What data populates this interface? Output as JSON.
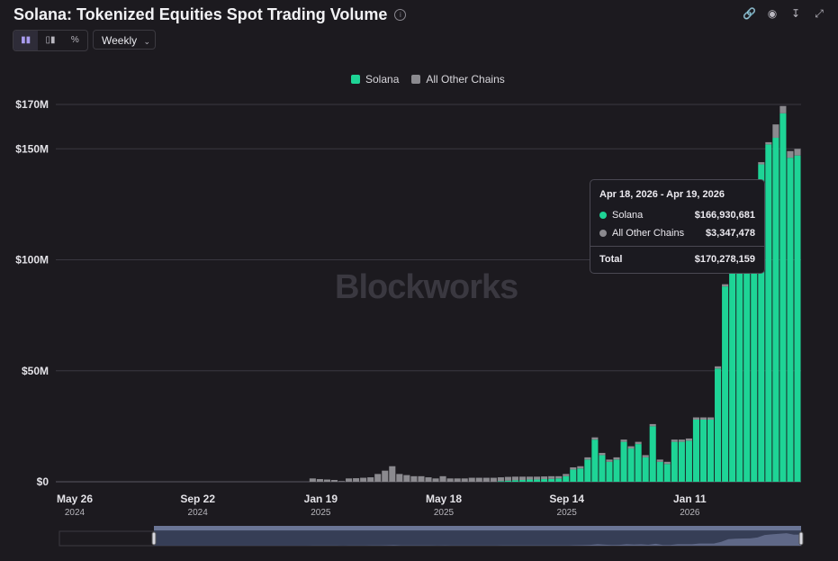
{
  "title": "Solana: Tokenized Equities Spot Trading Volume",
  "toolbar": {
    "chart_modes": [
      "bar-chart-icon",
      "stacked-bar-icon",
      "percent-icon"
    ],
    "interval": "Weekly",
    "actions": [
      "link-icon",
      "camera-icon",
      "download-icon",
      "fullscreen-icon"
    ]
  },
  "watermark": "Blockworks",
  "tooltip": {
    "title": "Apr 18, 2026 - Apr 19, 2026",
    "rows": [
      {
        "label": "Solana",
        "value": "$166,930,681"
      },
      {
        "label": "All Other Chains",
        "value": "$3,347,478"
      }
    ],
    "total_label": "Total",
    "total_value": "$170,278,159"
  },
  "chart_data": {
    "type": "bar",
    "stacked": true,
    "legend_position": "top-center",
    "colors": {
      "Solana": "#1ed496",
      "All Other Chains": "#8b8a8f",
      "background": "#1c1a1f",
      "grid": "#3a3840"
    },
    "y_ticks": [
      "$0",
      "$50M",
      "$100M",
      "$150M",
      "$170M"
    ],
    "y_tick_values": [
      0,
      50,
      100,
      150,
      170
    ],
    "ylim": [
      0,
      170
    ],
    "x_ticks": [
      {
        "label": "May 26",
        "year": "2024",
        "index": 0
      },
      {
        "label": "Sep 22",
        "year": "2024",
        "index": 17
      },
      {
        "label": "Jan 19",
        "year": "2025",
        "index": 34
      },
      {
        "label": "May 18",
        "year": "2025",
        "index": 51
      },
      {
        "label": "Sep 14",
        "year": "2025",
        "index": 68
      },
      {
        "label": "Jan 11",
        "year": "2026",
        "index": 85
      }
    ],
    "series": [
      {
        "name": "Solana",
        "values": [
          0,
          0,
          0,
          0,
          0,
          0,
          0,
          0,
          0,
          0,
          0,
          0,
          0,
          0,
          0,
          0,
          0,
          0,
          0,
          0,
          0,
          0,
          0,
          0,
          0,
          0,
          0,
          0,
          0,
          0,
          0,
          0,
          0,
          0,
          0,
          0,
          0,
          0,
          0,
          0,
          0,
          0,
          0,
          0,
          0,
          0,
          0,
          0,
          0,
          0,
          0,
          0,
          0,
          0,
          0,
          0,
          0,
          0,
          0,
          0,
          0,
          0.3,
          0.5,
          0.7,
          0.8,
          1,
          1,
          1.2,
          1.3,
          1.5,
          2.5,
          5.5,
          6,
          10,
          19,
          12,
          9,
          10,
          18,
          15,
          17,
          11,
          25,
          9,
          8,
          18,
          18,
          18.5,
          28,
          28,
          28,
          51,
          88,
          94,
          96,
          97,
          110,
          143,
          152,
          155,
          166,
          146,
          147
        ]
      },
      {
        "name": "All Other Chains",
        "values": [
          0,
          0,
          0,
          0,
          0,
          0,
          0,
          0,
          0,
          0,
          0,
          0,
          0,
          0,
          0,
          0,
          0,
          0,
          0,
          0,
          0,
          0,
          0,
          0,
          0,
          0,
          0,
          0,
          0,
          0,
          0,
          0,
          0,
          0,
          0,
          1.5,
          1.2,
          1,
          0.8,
          0.3,
          1.5,
          1.6,
          1.8,
          2,
          3.5,
          5,
          7,
          3.5,
          3,
          2.5,
          2.5,
          2,
          1.5,
          2.5,
          1.5,
          1.5,
          1.5,
          1.8,
          1.8,
          1.8,
          1.8,
          1.7,
          1.7,
          1.6,
          1.5,
          1.3,
          1.3,
          1.2,
          1.2,
          1,
          1,
          1,
          1,
          1,
          1,
          1,
          1,
          1,
          1,
          1,
          1,
          1,
          1,
          1,
          1,
          1,
          1,
          1,
          1,
          1,
          1,
          1,
          1,
          1,
          1,
          1,
          1,
          1,
          1,
          6,
          3.3,
          3,
          3
        ]
      }
    ]
  }
}
